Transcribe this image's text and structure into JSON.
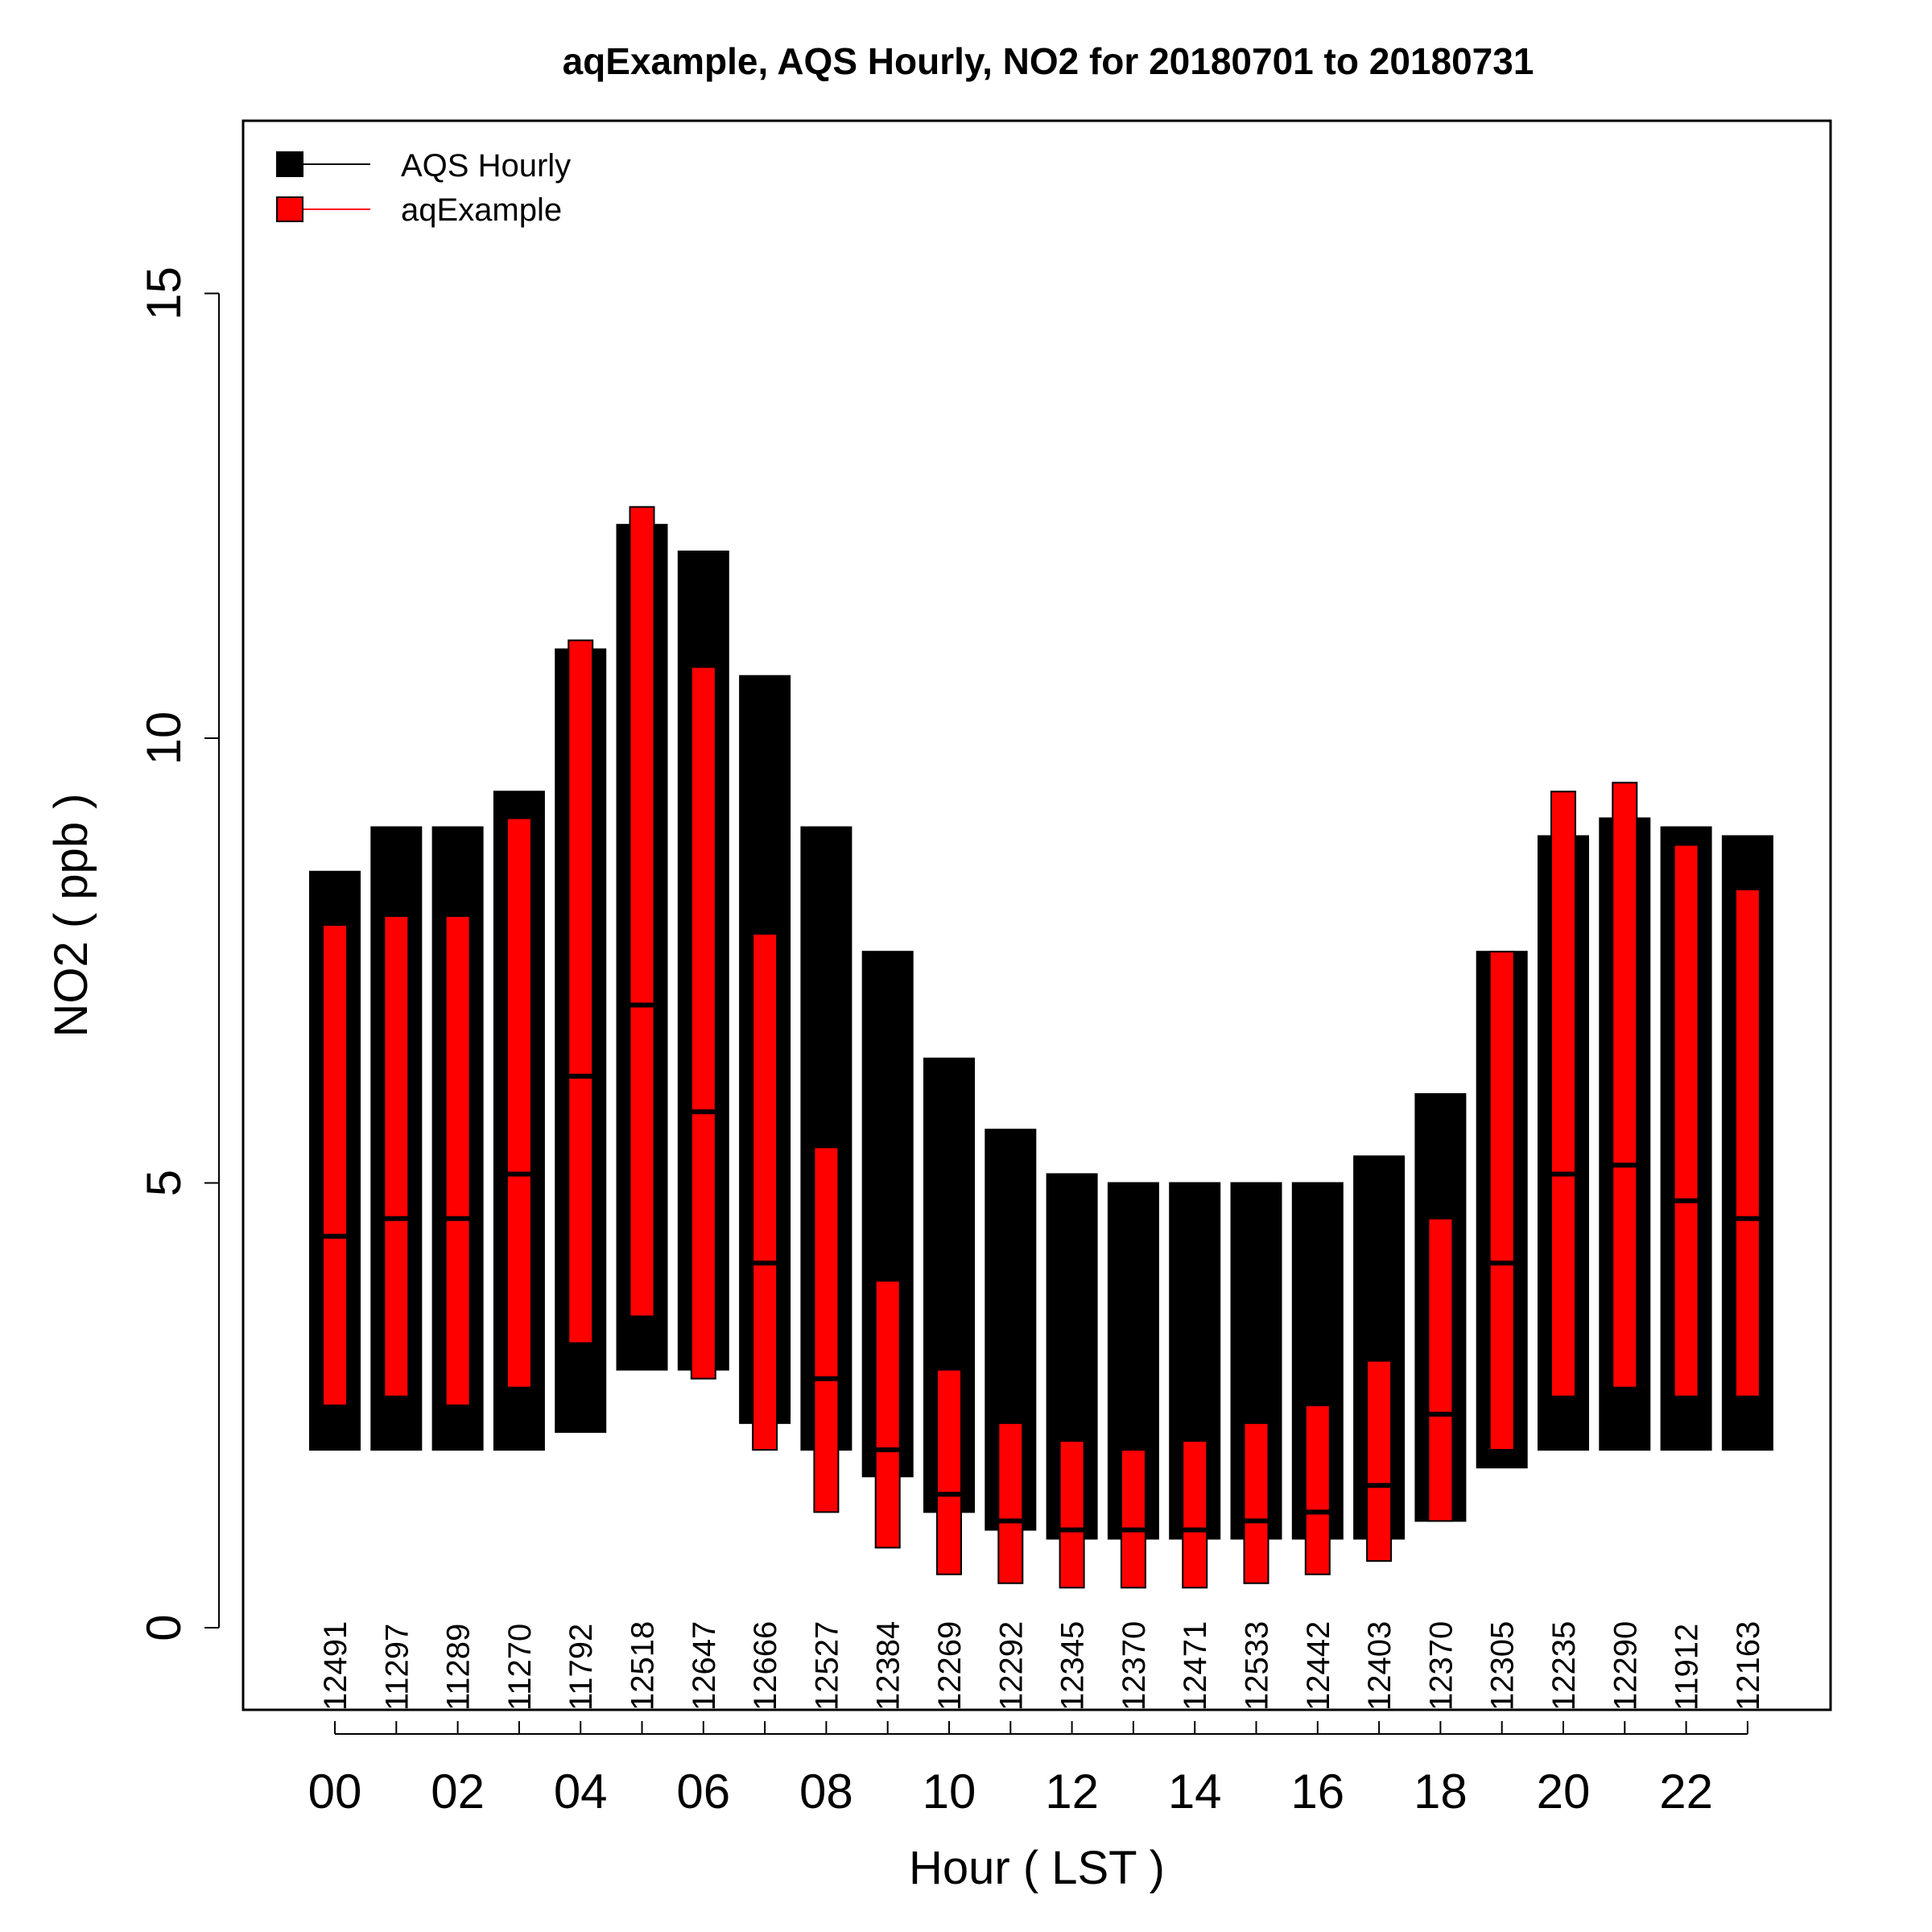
{
  "chart_data": {
    "type": "bar",
    "title": "aqExample, AQS Hourly, NO2 for 20180701 to 20180731",
    "xlabel": "Hour ( LST )",
    "ylabel": "NO2 ( ppb )",
    "ylim": [
      -1,
      17
    ],
    "y_ticks": [
      "0",
      "5",
      "10",
      "15"
    ],
    "x_tick_labels": [
      "00",
      "02",
      "04",
      "06",
      "08",
      "10",
      "12",
      "14",
      "16",
      "18",
      "20",
      "22"
    ],
    "grid": false,
    "legend": {
      "position": "top-left",
      "entries": [
        "AQS Hourly",
        "aqExample"
      ]
    },
    "hours": [
      0,
      1,
      2,
      3,
      4,
      5,
      6,
      7,
      8,
      9,
      10,
      11,
      12,
      13,
      14,
      15,
      16,
      17,
      18,
      19,
      20,
      21,
      22,
      23
    ],
    "counts": [
      "12491",
      "11297",
      "11289",
      "11270",
      "11792",
      "12518",
      "12647",
      "12666",
      "12527",
      "12384",
      "12269",
      "12292",
      "12345",
      "12370",
      "12471",
      "12533",
      "12442",
      "12403",
      "12370",
      "12305",
      "12235",
      "12290",
      "11912",
      "12163"
    ],
    "series": [
      {
        "name": "AQS Hourly",
        "color": "#000000",
        "low": [
          2.0,
          2.0,
          2.0,
          2.0,
          2.2,
          2.9,
          2.9,
          2.3,
          2.0,
          1.7,
          1.3,
          1.1,
          1.0,
          1.0,
          1.0,
          1.0,
          1.0,
          1.0,
          1.2,
          1.8,
          2.0,
          2.0,
          2.0,
          2.0
        ],
        "median": [
          4.4,
          4.6,
          4.6,
          5.1,
          6.2,
          7.0,
          5.8,
          4.1,
          2.8,
          2.0,
          1.5,
          1.2,
          1.1,
          1.1,
          1.1,
          1.2,
          1.3,
          1.6,
          2.4,
          4.1,
          5.1,
          5.2,
          4.8,
          4.6
        ],
        "high": [
          8.5,
          9.0,
          9.0,
          9.4,
          11.0,
          12.4,
          12.1,
          10.7,
          9.0,
          7.6,
          6.4,
          5.6,
          5.1,
          5.0,
          5.0,
          5.0,
          5.0,
          5.3,
          6.0,
          7.6,
          8.9,
          9.1,
          9.0,
          8.9
        ]
      },
      {
        "name": "aqExample",
        "color": "#ff0000",
        "low": [
          2.5,
          2.6,
          2.5,
          2.7,
          3.2,
          3.5,
          2.8,
          2.0,
          1.3,
          0.9,
          0.6,
          0.5,
          0.45,
          0.45,
          0.45,
          0.5,
          0.6,
          0.75,
          1.2,
          2.0,
          2.6,
          2.7,
          2.6,
          2.6
        ],
        "median": [
          4.4,
          4.6,
          4.6,
          5.1,
          6.2,
          7.0,
          5.8,
          4.1,
          2.8,
          2.0,
          1.5,
          1.2,
          1.1,
          1.1,
          1.1,
          1.2,
          1.3,
          1.6,
          2.4,
          4.1,
          5.1,
          5.2,
          4.8,
          4.6
        ],
        "high": [
          7.9,
          8.0,
          8.0,
          9.1,
          11.1,
          12.6,
          10.8,
          7.8,
          5.4,
          3.9,
          2.9,
          2.3,
          2.1,
          2.0,
          2.1,
          2.3,
          2.5,
          3.0,
          4.6,
          7.6,
          9.4,
          9.5,
          8.8,
          8.3
        ]
      }
    ]
  }
}
